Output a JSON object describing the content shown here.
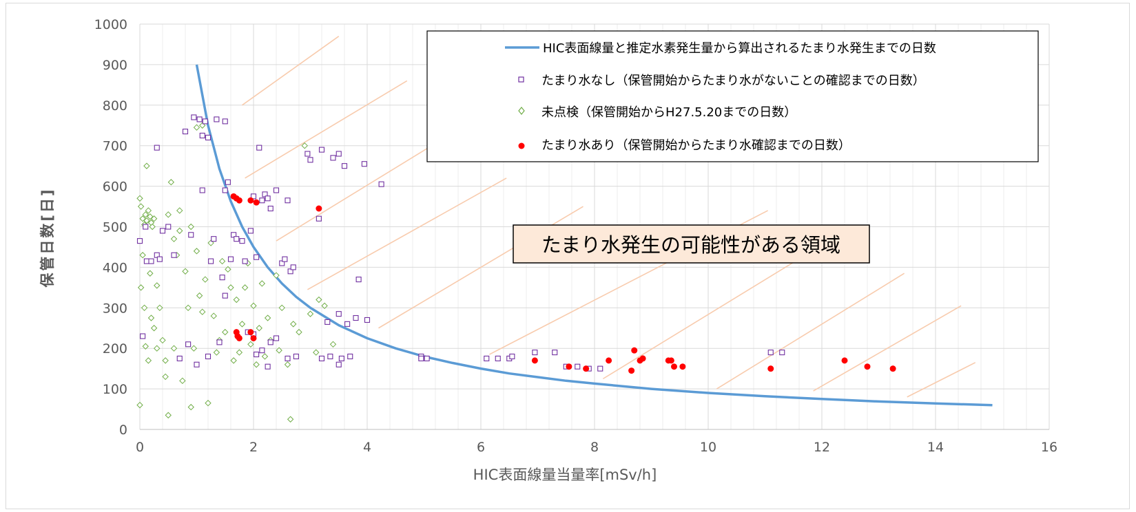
{
  "chart_data": {
    "type": "scatter",
    "xlabel": "HIC表面線量当量率[mSv/h]",
    "ylabel": "保管日数[日]",
    "xlim": [
      0,
      16
    ],
    "ylim": [
      0,
      1000
    ],
    "x_ticks": [
      0,
      2,
      4,
      6,
      8,
      10,
      12,
      14,
      16
    ],
    "y_ticks": [
      0,
      100,
      200,
      300,
      400,
      500,
      600,
      700,
      800,
      900,
      1000
    ],
    "grid": "major and minor",
    "legend_position": "top-right",
    "region_label": "たまり水発生の可能性がある領域",
    "colors": {
      "curve": "#5b9bd5",
      "no_water": "#7030a0",
      "uninspected": "#70ad47",
      "water": "#ff0000",
      "hatch": "#f8cbad",
      "region_fill": "#fde9d9"
    },
    "series": [
      {
        "name": "HIC表面線量と推定水素発生量から算出されるたまり水発生までの日数",
        "kind": "line",
        "points": [
          [
            1.0,
            900
          ],
          [
            1.2,
            750
          ],
          [
            1.4,
            643
          ],
          [
            1.6,
            563
          ],
          [
            1.8,
            500
          ],
          [
            2.0,
            450
          ],
          [
            2.25,
            400
          ],
          [
            2.5,
            360
          ],
          [
            2.75,
            327
          ],
          [
            3.0,
            300
          ],
          [
            3.5,
            257
          ],
          [
            4.0,
            225
          ],
          [
            4.5,
            200
          ],
          [
            5.0,
            180
          ],
          [
            5.5,
            164
          ],
          [
            6.0,
            150
          ],
          [
            6.5,
            138
          ],
          [
            7.0,
            129
          ],
          [
            7.5,
            120
          ],
          [
            8.0,
            113
          ],
          [
            9.0,
            100
          ],
          [
            10.0,
            90
          ],
          [
            11.0,
            82
          ],
          [
            12.0,
            75
          ],
          [
            13.0,
            69
          ],
          [
            14.0,
            64
          ],
          [
            15.0,
            60
          ]
        ]
      },
      {
        "name": "たまり水なし（保管開始からたまり水がないことの確認までの日数）",
        "kind": "scatter",
        "marker": "square-open",
        "points": [
          [
            0.0,
            465
          ],
          [
            0.05,
            230
          ],
          [
            0.1,
            500
          ],
          [
            0.12,
            415
          ],
          [
            0.2,
            415
          ],
          [
            0.3,
            695
          ],
          [
            0.3,
            430
          ],
          [
            0.35,
            420
          ],
          [
            0.4,
            490
          ],
          [
            0.5,
            500
          ],
          [
            0.6,
            430
          ],
          [
            0.7,
            175
          ],
          [
            0.8,
            735
          ],
          [
            0.85,
            210
          ],
          [
            0.9,
            480
          ],
          [
            0.95,
            770
          ],
          [
            1.0,
            160
          ],
          [
            1.05,
            765
          ],
          [
            1.1,
            590
          ],
          [
            1.1,
            725
          ],
          [
            1.15,
            760
          ],
          [
            1.2,
            720
          ],
          [
            1.2,
            180
          ],
          [
            1.25,
            415
          ],
          [
            1.3,
            470
          ],
          [
            1.35,
            765
          ],
          [
            1.4,
            215
          ],
          [
            1.45,
            375
          ],
          [
            1.5,
            760
          ],
          [
            1.5,
            590
          ],
          [
            1.5,
            330
          ],
          [
            1.55,
            610
          ],
          [
            1.6,
            420
          ],
          [
            1.65,
            480
          ],
          [
            1.7,
            470
          ],
          [
            1.8,
            465
          ],
          [
            1.85,
            415
          ],
          [
            1.95,
            490
          ],
          [
            2.0,
            575
          ],
          [
            2.05,
            425
          ],
          [
            2.1,
            695
          ],
          [
            2.15,
            565
          ],
          [
            2.2,
            580
          ],
          [
            2.25,
            570
          ],
          [
            2.3,
            545
          ],
          [
            2.4,
            590
          ],
          [
            2.5,
            410
          ],
          [
            2.55,
            420
          ],
          [
            2.6,
            565
          ],
          [
            2.65,
            390
          ],
          [
            2.7,
            400
          ],
          [
            1.9,
            240
          ],
          [
            2.0,
            235
          ],
          [
            2.05,
            185
          ],
          [
            2.15,
            195
          ],
          [
            2.25,
            155
          ],
          [
            2.3,
            215
          ],
          [
            2.4,
            225
          ],
          [
            2.6,
            175
          ],
          [
            2.75,
            180
          ],
          [
            2.95,
            680
          ],
          [
            3.0,
            665
          ],
          [
            3.15,
            520
          ],
          [
            3.2,
            690
          ],
          [
            3.3,
            265
          ],
          [
            3.4,
            670
          ],
          [
            3.5,
            680
          ],
          [
            3.5,
            285
          ],
          [
            3.55,
            175
          ],
          [
            3.6,
            650
          ],
          [
            3.65,
            260
          ],
          [
            3.7,
            180
          ],
          [
            3.8,
            275
          ],
          [
            3.85,
            370
          ],
          [
            3.95,
            655
          ],
          [
            4.0,
            270
          ],
          [
            4.25,
            605
          ],
          [
            3.35,
            180
          ],
          [
            3.5,
            160
          ],
          [
            3.2,
            175
          ],
          [
            4.95,
            180
          ],
          [
            4.95,
            175
          ],
          [
            5.05,
            175
          ],
          [
            6.1,
            175
          ],
          [
            6.3,
            175
          ],
          [
            6.5,
            175
          ],
          [
            6.55,
            180
          ],
          [
            6.95,
            190
          ],
          [
            7.3,
            190
          ],
          [
            7.5,
            155
          ],
          [
            7.7,
            155
          ],
          [
            7.9,
            150
          ],
          [
            8.1,
            150
          ],
          [
            11.1,
            190
          ],
          [
            11.3,
            190
          ]
        ]
      },
      {
        "name": "未点検（保管開始からH27.5.20までの日数）",
        "kind": "scatter",
        "marker": "diamond-open",
        "points": [
          [
            0.0,
            570
          ],
          [
            0.02,
            550
          ],
          [
            0.05,
            520
          ],
          [
            0.08,
            505
          ],
          [
            0.1,
            530
          ],
          [
            0.12,
            515
          ],
          [
            0.15,
            540
          ],
          [
            0.18,
            525
          ],
          [
            0.2,
            510
          ],
          [
            0.22,
            500
          ],
          [
            0.25,
            520
          ],
          [
            0.02,
            350
          ],
          [
            0.05,
            430
          ],
          [
            0.08,
            300
          ],
          [
            0.1,
            205
          ],
          [
            0.12,
            650
          ],
          [
            0.15,
            170
          ],
          [
            0.18,
            385
          ],
          [
            0.2,
            275
          ],
          [
            0.25,
            250
          ],
          [
            0.3,
            355
          ],
          [
            0.35,
            300
          ],
          [
            0.4,
            220
          ],
          [
            0.45,
            170
          ],
          [
            0.5,
            35
          ],
          [
            0.5,
            530
          ],
          [
            0.55,
            610
          ],
          [
            0.6,
            470
          ],
          [
            0.65,
            430
          ],
          [
            0.7,
            540
          ],
          [
            0.75,
            120
          ],
          [
            0.8,
            390
          ],
          [
            0.85,
            300
          ],
          [
            0.9,
            55
          ],
          [
            0.95,
            200
          ],
          [
            1.0,
            440
          ],
          [
            1.05,
            330
          ],
          [
            1.1,
            290
          ],
          [
            1.15,
            370
          ],
          [
            1.2,
            65
          ],
          [
            1.25,
            460
          ],
          [
            1.3,
            280
          ],
          [
            1.35,
            190
          ],
          [
            1.4,
            220
          ],
          [
            1.45,
            415
          ],
          [
            1.5,
            240
          ],
          [
            1.55,
            395
          ],
          [
            1.6,
            350
          ],
          [
            1.65,
            170
          ],
          [
            1.7,
            320
          ],
          [
            1.75,
            190
          ],
          [
            1.8,
            260
          ],
          [
            1.85,
            350
          ],
          [
            1.9,
            410
          ],
          [
            1.95,
            210
          ],
          [
            2.0,
            305
          ],
          [
            2.05,
            160
          ],
          [
            2.1,
            250
          ],
          [
            2.15,
            360
          ],
          [
            2.2,
            180
          ],
          [
            2.25,
            275
          ],
          [
            2.3,
            220
          ],
          [
            2.4,
            380
          ],
          [
            2.45,
            195
          ],
          [
            2.5,
            300
          ],
          [
            2.6,
            160
          ],
          [
            2.65,
            25
          ],
          [
            2.7,
            260
          ],
          [
            2.8,
            240
          ],
          [
            2.9,
            700
          ],
          [
            3.0,
            285
          ],
          [
            3.1,
            190
          ],
          [
            3.15,
            320
          ],
          [
            3.25,
            305
          ],
          [
            3.4,
            210
          ],
          [
            0.6,
            200
          ],
          [
            0.7,
            490
          ],
          [
            0.9,
            500
          ],
          [
            1.0,
            745
          ],
          [
            1.1,
            750
          ],
          [
            0.0,
            60
          ],
          [
            0.3,
            200
          ],
          [
            0.45,
            130
          ]
        ]
      },
      {
        "name": "たまり水あり（保管開始からたまり水確認までの日数）",
        "kind": "scatter",
        "marker": "circle-filled",
        "points": [
          [
            1.65,
            575
          ],
          [
            1.7,
            570
          ],
          [
            1.75,
            565
          ],
          [
            1.95,
            565
          ],
          [
            2.05,
            560
          ],
          [
            3.15,
            545
          ],
          [
            1.7,
            240
          ],
          [
            1.72,
            230
          ],
          [
            1.75,
            225
          ],
          [
            1.95,
            240
          ],
          [
            2.0,
            225
          ],
          [
            6.95,
            170
          ],
          [
            7.55,
            155
          ],
          [
            7.85,
            150
          ],
          [
            8.25,
            170
          ],
          [
            8.65,
            145
          ],
          [
            8.7,
            195
          ],
          [
            8.8,
            170
          ],
          [
            8.85,
            175
          ],
          [
            9.3,
            170
          ],
          [
            9.35,
            170
          ],
          [
            9.4,
            155
          ],
          [
            9.55,
            155
          ],
          [
            11.1,
            150
          ],
          [
            12.4,
            170
          ],
          [
            12.8,
            155
          ],
          [
            13.25,
            150
          ]
        ]
      }
    ]
  }
}
